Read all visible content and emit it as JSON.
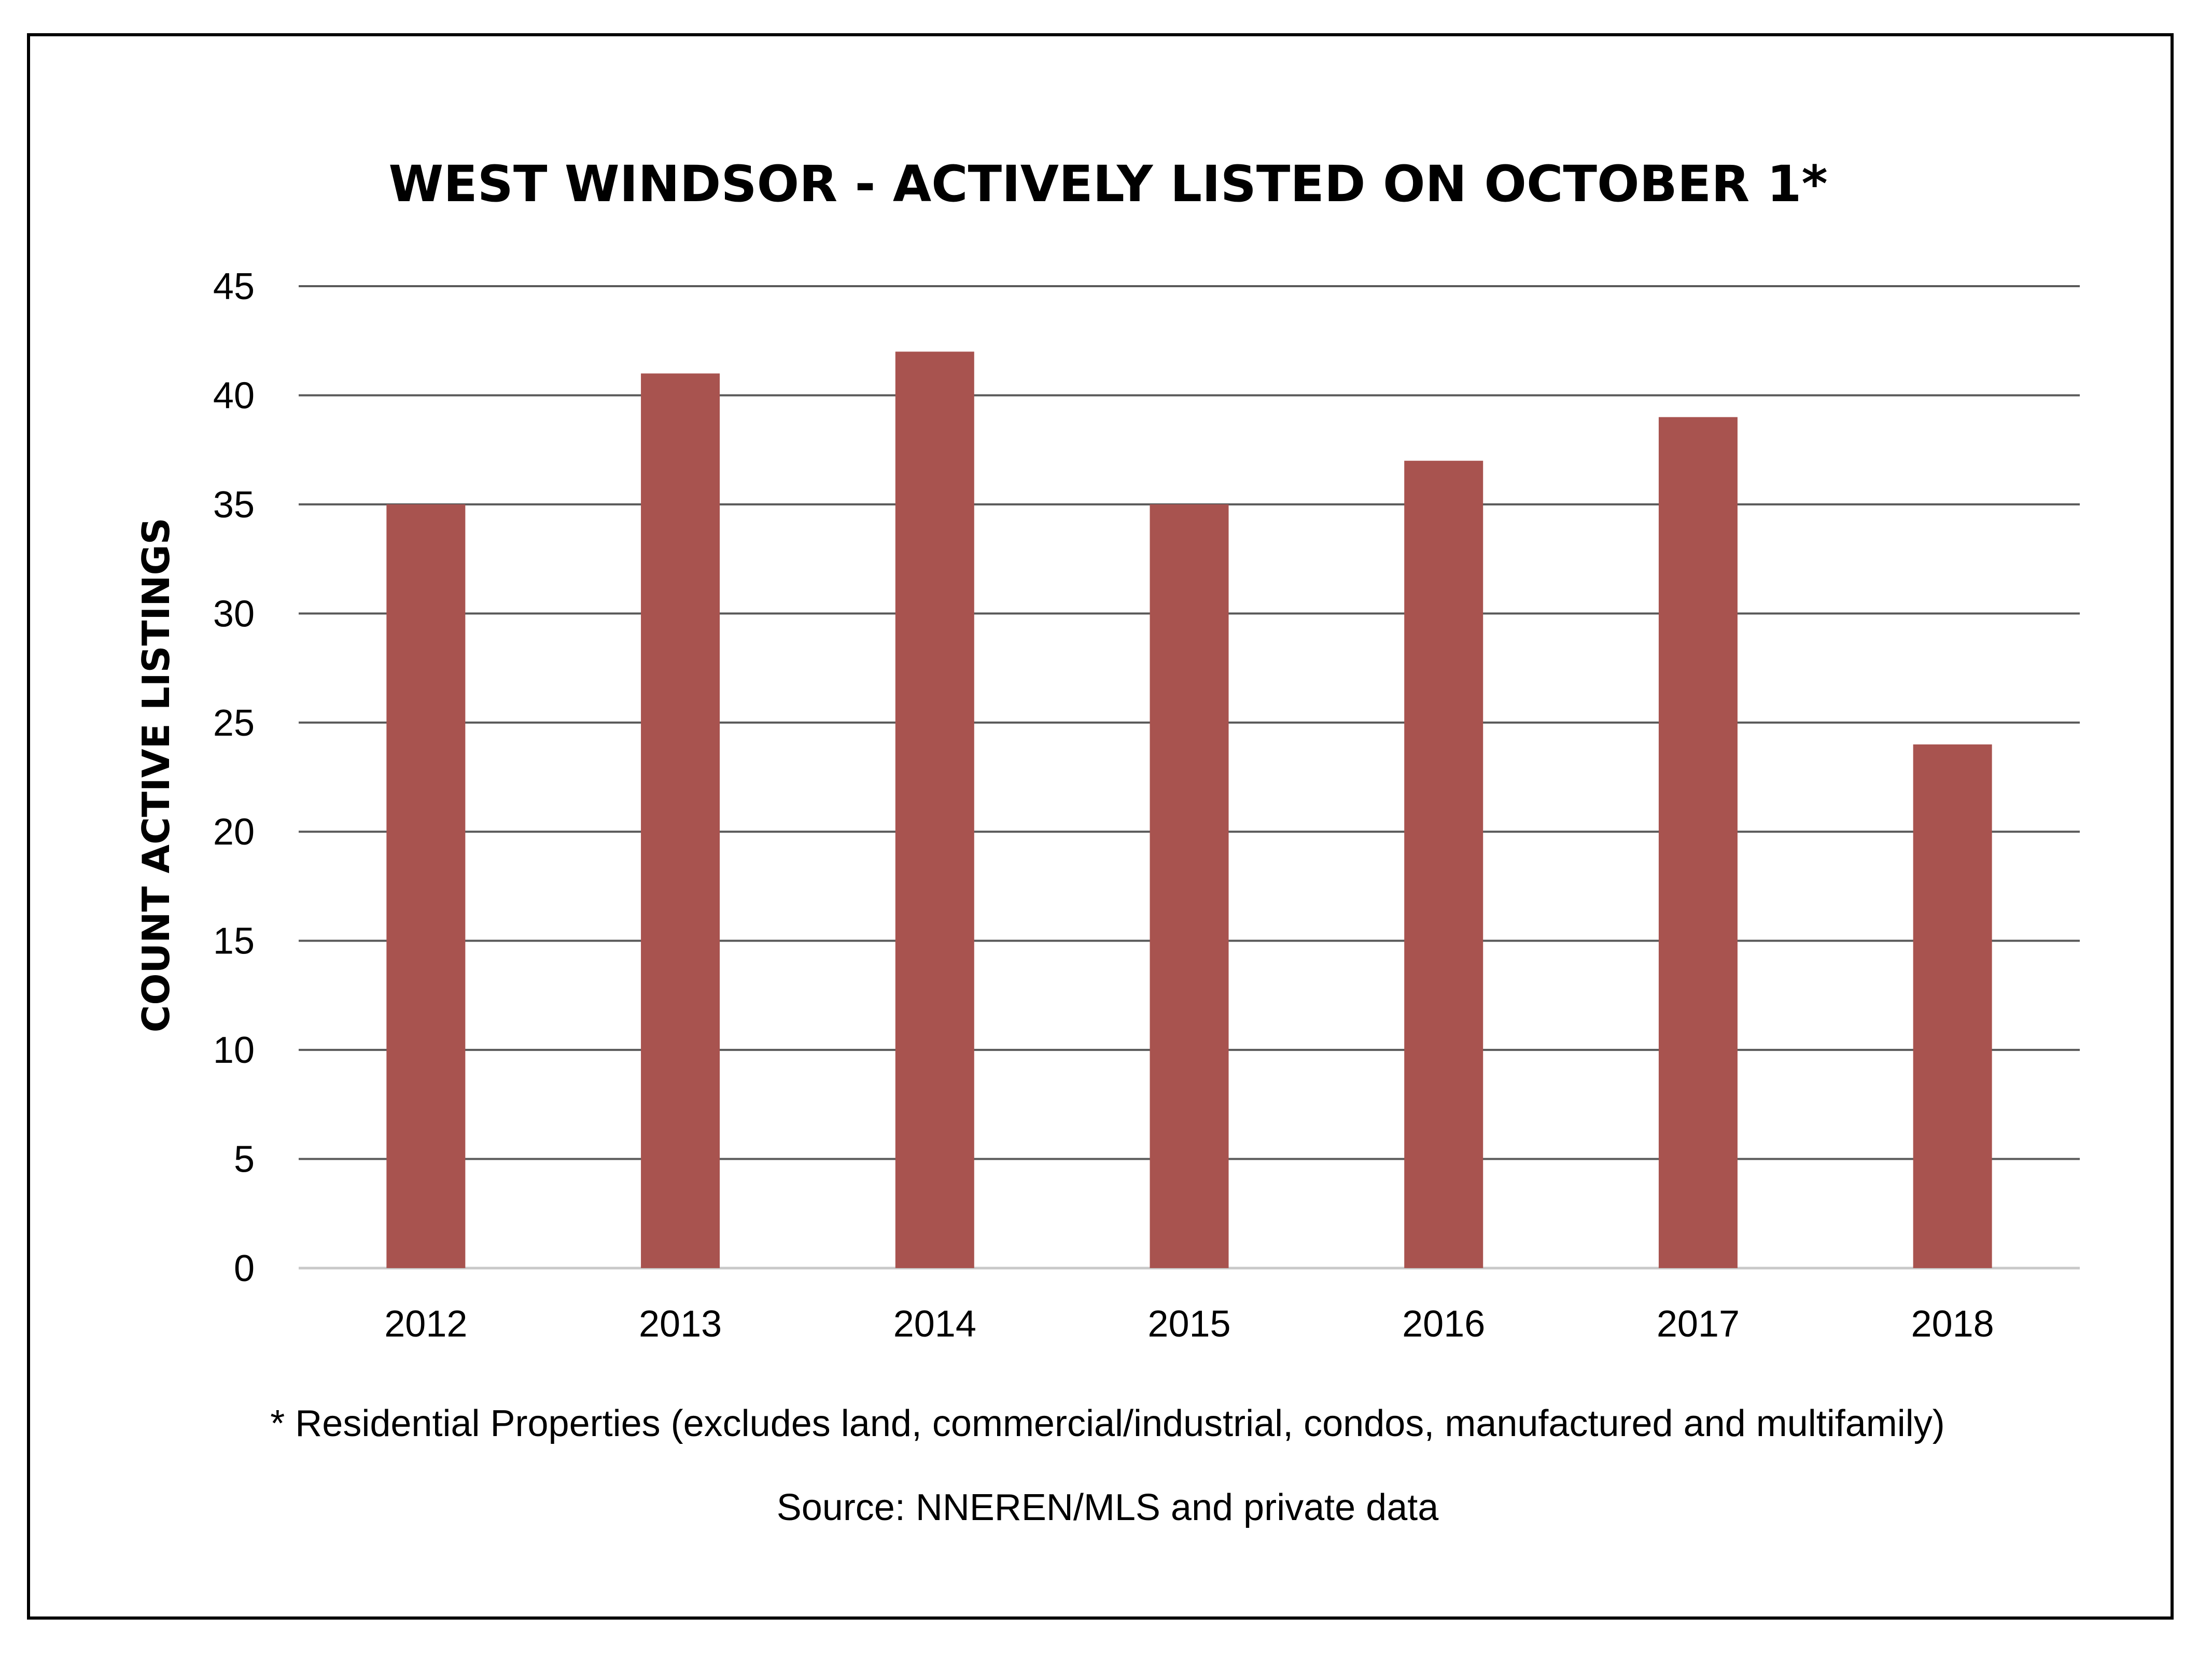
{
  "chart_data": {
    "type": "bar",
    "title": "WEST WINDSOR - ACTIVELY LISTED ON OCTOBER 1*",
    "ylabel": "COUNT ACTIVE LISTINGS",
    "xlabel": "",
    "categories": [
      "2012",
      "2013",
      "2014",
      "2015",
      "2016",
      "2017",
      "2018"
    ],
    "values": [
      35,
      41,
      42,
      35,
      37,
      39,
      24
    ],
    "ylim": [
      0,
      45
    ],
    "yticks": [
      0,
      5,
      10,
      15,
      20,
      25,
      30,
      35,
      40,
      45
    ],
    "grid": true,
    "bar_color": "#A8534F",
    "gridline_color": "#595959"
  },
  "footnote": "* Residential Properties (excludes land, commercial/industrial, condos, manufactured and multifamily)",
  "source": "Source: NNEREN/MLS and private data"
}
